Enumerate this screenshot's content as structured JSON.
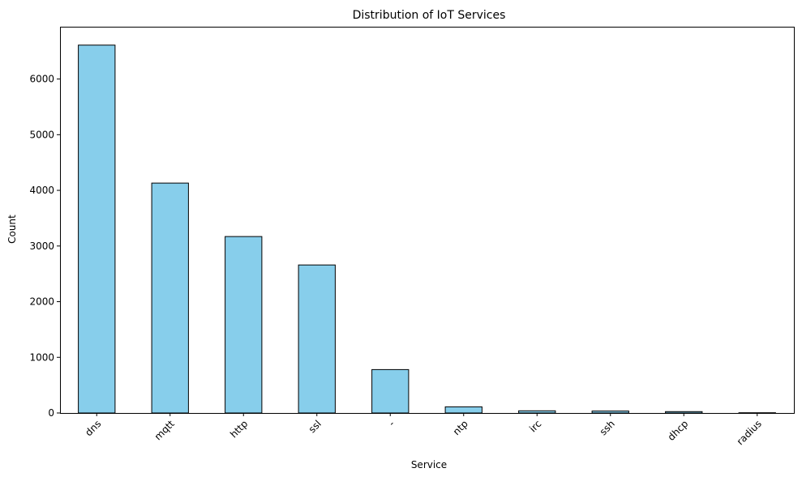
{
  "chart_data": {
    "type": "bar",
    "title": "Distribution of IoT Services",
    "xlabel": "Service",
    "ylabel": "Count",
    "categories": [
      "dns",
      "mqtt",
      "http",
      "ssl",
      "-",
      "ntp",
      "irc",
      "ssh",
      "dhcp",
      "radius"
    ],
    "values": [
      6610,
      4130,
      3170,
      2660,
      780,
      110,
      40,
      35,
      25,
      5
    ],
    "ylim": [
      0,
      6940
    ],
    "yticks": [
      0,
      1000,
      2000,
      3000,
      4000,
      5000,
      6000
    ],
    "grid": false,
    "legend": "none",
    "bar_color": "#87CEEB",
    "edge_color": "#000000"
  }
}
